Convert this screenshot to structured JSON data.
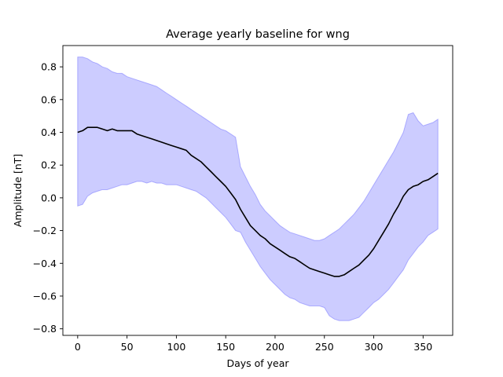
{
  "chart_data": {
    "type": "line",
    "title": "Average yearly baseline for wng",
    "xlabel": "Days of year",
    "ylabel": "Amplitude [nT]",
    "xlim": [
      -15,
      380
    ],
    "ylim": [
      -0.84,
      0.93
    ],
    "xticks": [
      0,
      50,
      100,
      150,
      200,
      250,
      300,
      350
    ],
    "yticks": [
      -0.8,
      -0.6,
      -0.4,
      -0.2,
      0.0,
      0.2,
      0.4,
      0.6,
      0.8
    ],
    "ytick_labels": [
      "−0.8",
      "−0.6",
      "−0.4",
      "−0.2",
      "0.0",
      "0.2",
      "0.4",
      "0.6",
      "0.8"
    ],
    "grid": false,
    "colors": {
      "line": "#000000",
      "band": "#0000ff"
    },
    "series": [
      {
        "x": [
          0,
          5,
          10,
          15,
          20,
          25,
          30,
          35,
          40,
          45,
          50,
          55,
          60,
          65,
          70,
          75,
          80,
          85,
          90,
          95,
          100,
          105,
          110,
          115,
          120,
          125,
          130,
          135,
          140,
          145,
          150,
          155,
          160,
          165,
          170,
          175,
          180,
          185,
          190,
          195,
          200,
          205,
          210,
          215,
          220,
          225,
          230,
          235,
          240,
          245,
          250,
          255,
          260,
          265,
          270,
          275,
          280,
          285,
          290,
          295,
          300,
          305,
          310,
          315,
          320,
          325,
          330,
          335,
          340,
          345,
          350,
          355,
          360,
          365
        ],
        "y": [
          0.4,
          0.41,
          0.43,
          0.43,
          0.43,
          0.42,
          0.41,
          0.42,
          0.41,
          0.41,
          0.41,
          0.41,
          0.39,
          0.38,
          0.37,
          0.36,
          0.35,
          0.34,
          0.33,
          0.32,
          0.31,
          0.3,
          0.29,
          0.26,
          0.24,
          0.22,
          0.19,
          0.16,
          0.13,
          0.1,
          0.07,
          0.03,
          -0.01,
          -0.07,
          -0.12,
          -0.17,
          -0.2,
          -0.23,
          -0.25,
          -0.28,
          -0.3,
          -0.32,
          -0.34,
          -0.36,
          -0.37,
          -0.39,
          -0.41,
          -0.43,
          -0.44,
          -0.45,
          -0.46,
          -0.47,
          -0.48,
          -0.48,
          -0.47,
          -0.45,
          -0.43,
          -0.41,
          -0.38,
          -0.35,
          -0.31,
          -0.26,
          -0.21,
          -0.16,
          -0.1,
          -0.05,
          0.01,
          0.05,
          0.07,
          0.08,
          0.1,
          0.11,
          0.13,
          0.15
        ]
      }
    ],
    "band": {
      "x": [
        0,
        5,
        10,
        15,
        20,
        25,
        30,
        35,
        40,
        45,
        50,
        55,
        60,
        65,
        70,
        75,
        80,
        85,
        90,
        95,
        100,
        105,
        110,
        115,
        120,
        125,
        130,
        135,
        140,
        145,
        150,
        155,
        160,
        165,
        170,
        175,
        180,
        185,
        190,
        195,
        200,
        205,
        210,
        215,
        220,
        225,
        230,
        235,
        240,
        245,
        250,
        255,
        260,
        265,
        270,
        275,
        280,
        285,
        290,
        295,
        300,
        305,
        310,
        315,
        320,
        325,
        330,
        335,
        340,
        345,
        350,
        355,
        360,
        365
      ],
      "upper": [
        0.86,
        0.86,
        0.85,
        0.83,
        0.82,
        0.8,
        0.79,
        0.77,
        0.76,
        0.76,
        0.74,
        0.73,
        0.72,
        0.71,
        0.7,
        0.69,
        0.68,
        0.66,
        0.64,
        0.62,
        0.6,
        0.58,
        0.56,
        0.54,
        0.52,
        0.5,
        0.48,
        0.46,
        0.44,
        0.42,
        0.41,
        0.39,
        0.37,
        0.19,
        0.13,
        0.07,
        0.02,
        -0.04,
        -0.08,
        -0.11,
        -0.14,
        -0.17,
        -0.19,
        -0.21,
        -0.22,
        -0.23,
        -0.24,
        -0.25,
        -0.26,
        -0.26,
        -0.25,
        -0.23,
        -0.21,
        -0.19,
        -0.16,
        -0.13,
        -0.1,
        -0.06,
        -0.02,
        0.03,
        0.08,
        0.13,
        0.18,
        0.23,
        0.28,
        0.34,
        0.4,
        0.51,
        0.52,
        0.47,
        0.44,
        0.45,
        0.46,
        0.48
      ],
      "lower": [
        -0.05,
        -0.04,
        0.01,
        0.03,
        0.04,
        0.05,
        0.05,
        0.06,
        0.07,
        0.08,
        0.08,
        0.09,
        0.1,
        0.1,
        0.09,
        0.1,
        0.09,
        0.09,
        0.08,
        0.08,
        0.08,
        0.07,
        0.06,
        0.05,
        0.04,
        0.02,
        0.0,
        -0.03,
        -0.06,
        -0.09,
        -0.12,
        -0.16,
        -0.2,
        -0.21,
        -0.27,
        -0.32,
        -0.37,
        -0.42,
        -0.46,
        -0.5,
        -0.53,
        -0.56,
        -0.59,
        -0.61,
        -0.62,
        -0.64,
        -0.65,
        -0.66,
        -0.66,
        -0.66,
        -0.67,
        -0.72,
        -0.74,
        -0.75,
        -0.75,
        -0.75,
        -0.74,
        -0.73,
        -0.7,
        -0.67,
        -0.64,
        -0.62,
        -0.59,
        -0.56,
        -0.52,
        -0.48,
        -0.44,
        -0.38,
        -0.34,
        -0.3,
        -0.27,
        -0.23,
        -0.21,
        -0.19
      ]
    }
  }
}
